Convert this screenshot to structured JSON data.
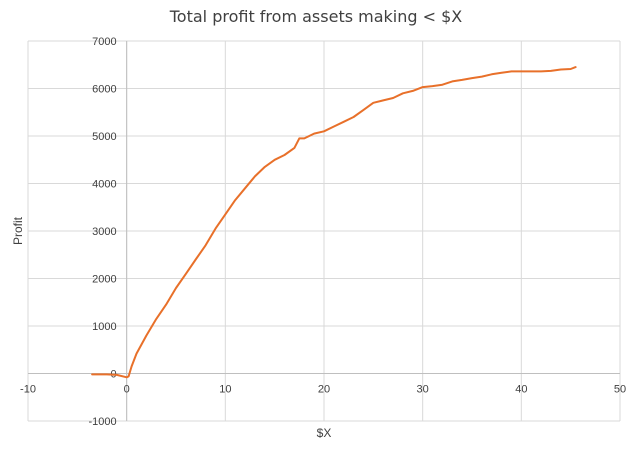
{
  "chart_data": {
    "type": "line",
    "title": "Total profit from assets making < $X",
    "xlabel": "$X",
    "ylabel": "Profit",
    "xlim": [
      -10,
      50
    ],
    "ylim": [
      -1000,
      7000
    ],
    "x_ticks": [
      -10,
      0,
      10,
      20,
      30,
      40,
      50
    ],
    "y_ticks": [
      -1000,
      0,
      1000,
      2000,
      3000,
      4000,
      5000,
      6000,
      7000
    ],
    "grid": true,
    "series_color": "#E8702A",
    "series": [
      {
        "points": [
          [
            -3.5,
            -20
          ],
          [
            -2,
            -20
          ],
          [
            -1,
            -30
          ],
          [
            0,
            -80
          ],
          [
            0.2,
            -60
          ],
          [
            0.5,
            150
          ],
          [
            1,
            420
          ],
          [
            2,
            800
          ],
          [
            3,
            1150
          ],
          [
            4,
            1450
          ],
          [
            5,
            1800
          ],
          [
            6,
            2100
          ],
          [
            7,
            2400
          ],
          [
            8,
            2700
          ],
          [
            9,
            3050
          ],
          [
            10,
            3350
          ],
          [
            11,
            3650
          ],
          [
            12,
            3900
          ],
          [
            13,
            4150
          ],
          [
            14,
            4350
          ],
          [
            15,
            4500
          ],
          [
            16,
            4600
          ],
          [
            17,
            4750
          ],
          [
            17.5,
            4950
          ],
          [
            18,
            4950
          ],
          [
            19,
            5050
          ],
          [
            20,
            5100
          ],
          [
            21,
            5200
          ],
          [
            22,
            5300
          ],
          [
            23,
            5400
          ],
          [
            24,
            5550
          ],
          [
            25,
            5700
          ],
          [
            26,
            5750
          ],
          [
            27,
            5800
          ],
          [
            28,
            5900
          ],
          [
            29,
            5950
          ],
          [
            30,
            6030
          ],
          [
            31,
            6050
          ],
          [
            32,
            6080
          ],
          [
            33,
            6150
          ],
          [
            34,
            6180
          ],
          [
            35,
            6220
          ],
          [
            36,
            6250
          ],
          [
            37,
            6300
          ],
          [
            38,
            6330
          ],
          [
            39,
            6360
          ],
          [
            40,
            6360
          ],
          [
            41,
            6360
          ],
          [
            42,
            6360
          ],
          [
            43,
            6370
          ],
          [
            44,
            6400
          ],
          [
            45,
            6410
          ],
          [
            45.5,
            6450
          ]
        ]
      }
    ]
  }
}
